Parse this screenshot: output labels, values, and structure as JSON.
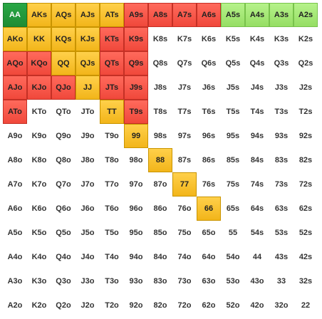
{
  "colors": {
    "green": "#1e8c34",
    "lightgreen": "#96de64",
    "orange": "#f2b51a",
    "red": "#f0483b",
    "white": "#ffffff"
  },
  "rows": [
    [
      {
        "label": "AA",
        "color": "green"
      },
      {
        "label": "AKs",
        "color": "orange"
      },
      {
        "label": "AQs",
        "color": "orange"
      },
      {
        "label": "AJs",
        "color": "orange"
      },
      {
        "label": "ATs",
        "color": "orange"
      },
      {
        "label": "A9s",
        "color": "red"
      },
      {
        "label": "A8s",
        "color": "red"
      },
      {
        "label": "A7s",
        "color": "red"
      },
      {
        "label": "A6s",
        "color": "red"
      },
      {
        "label": "A5s",
        "color": "lightgreen"
      },
      {
        "label": "A4s",
        "color": "lightgreen"
      },
      {
        "label": "A3s",
        "color": "lightgreen"
      },
      {
        "label": "A2s",
        "color": "lightgreen"
      }
    ],
    [
      {
        "label": "AKo",
        "color": "orange"
      },
      {
        "label": "KK",
        "color": "orange"
      },
      {
        "label": "KQs",
        "color": "orange"
      },
      {
        "label": "KJs",
        "color": "orange"
      },
      {
        "label": "KTs",
        "color": "red"
      },
      {
        "label": "K9s",
        "color": "red"
      },
      {
        "label": "K8s",
        "color": "white"
      },
      {
        "label": "K7s",
        "color": "white"
      },
      {
        "label": "K6s",
        "color": "white"
      },
      {
        "label": "K5s",
        "color": "white"
      },
      {
        "label": "K4s",
        "color": "white"
      },
      {
        "label": "K3s",
        "color": "white"
      },
      {
        "label": "K2s",
        "color": "white"
      }
    ],
    [
      {
        "label": "AQo",
        "color": "red"
      },
      {
        "label": "KQo",
        "color": "red"
      },
      {
        "label": "QQ",
        "color": "orange"
      },
      {
        "label": "QJs",
        "color": "orange"
      },
      {
        "label": "QTs",
        "color": "red"
      },
      {
        "label": "Q9s",
        "color": "red"
      },
      {
        "label": "Q8s",
        "color": "white"
      },
      {
        "label": "Q7s",
        "color": "white"
      },
      {
        "label": "Q6s",
        "color": "white"
      },
      {
        "label": "Q5s",
        "color": "white"
      },
      {
        "label": "Q4s",
        "color": "white"
      },
      {
        "label": "Q3s",
        "color": "white"
      },
      {
        "label": "Q2s",
        "color": "white"
      }
    ],
    [
      {
        "label": "AJo",
        "color": "red"
      },
      {
        "label": "KJo",
        "color": "red"
      },
      {
        "label": "QJo",
        "color": "red"
      },
      {
        "label": "JJ",
        "color": "orange"
      },
      {
        "label": "JTs",
        "color": "red"
      },
      {
        "label": "J9s",
        "color": "red"
      },
      {
        "label": "J8s",
        "color": "white"
      },
      {
        "label": "J7s",
        "color": "white"
      },
      {
        "label": "J6s",
        "color": "white"
      },
      {
        "label": "J5s",
        "color": "white"
      },
      {
        "label": "J4s",
        "color": "white"
      },
      {
        "label": "J3s",
        "color": "white"
      },
      {
        "label": "J2s",
        "color": "white"
      }
    ],
    [
      {
        "label": "ATo",
        "color": "red"
      },
      {
        "label": "KTo",
        "color": "white"
      },
      {
        "label": "QTo",
        "color": "white"
      },
      {
        "label": "JTo",
        "color": "white"
      },
      {
        "label": "TT",
        "color": "orange"
      },
      {
        "label": "T9s",
        "color": "red"
      },
      {
        "label": "T8s",
        "color": "white"
      },
      {
        "label": "T7s",
        "color": "white"
      },
      {
        "label": "T6s",
        "color": "white"
      },
      {
        "label": "T5s",
        "color": "white"
      },
      {
        "label": "T4s",
        "color": "white"
      },
      {
        "label": "T3s",
        "color": "white"
      },
      {
        "label": "T2s",
        "color": "white"
      }
    ],
    [
      {
        "label": "A9o",
        "color": "white"
      },
      {
        "label": "K9o",
        "color": "white"
      },
      {
        "label": "Q9o",
        "color": "white"
      },
      {
        "label": "J9o",
        "color": "white"
      },
      {
        "label": "T9o",
        "color": "white"
      },
      {
        "label": "99",
        "color": "orange"
      },
      {
        "label": "98s",
        "color": "white"
      },
      {
        "label": "97s",
        "color": "white"
      },
      {
        "label": "96s",
        "color": "white"
      },
      {
        "label": "95s",
        "color": "white"
      },
      {
        "label": "94s",
        "color": "white"
      },
      {
        "label": "93s",
        "color": "white"
      },
      {
        "label": "92s",
        "color": "white"
      }
    ],
    [
      {
        "label": "A8o",
        "color": "white"
      },
      {
        "label": "K8o",
        "color": "white"
      },
      {
        "label": "Q8o",
        "color": "white"
      },
      {
        "label": "J8o",
        "color": "white"
      },
      {
        "label": "T8o",
        "color": "white"
      },
      {
        "label": "98o",
        "color": "white"
      },
      {
        "label": "88",
        "color": "orange"
      },
      {
        "label": "87s",
        "color": "white"
      },
      {
        "label": "86s",
        "color": "white"
      },
      {
        "label": "85s",
        "color": "white"
      },
      {
        "label": "84s",
        "color": "white"
      },
      {
        "label": "83s",
        "color": "white"
      },
      {
        "label": "82s",
        "color": "white"
      }
    ],
    [
      {
        "label": "A7o",
        "color": "white"
      },
      {
        "label": "K7o",
        "color": "white"
      },
      {
        "label": "Q7o",
        "color": "white"
      },
      {
        "label": "J7o",
        "color": "white"
      },
      {
        "label": "T7o",
        "color": "white"
      },
      {
        "label": "97o",
        "color": "white"
      },
      {
        "label": "87o",
        "color": "white"
      },
      {
        "label": "77",
        "color": "orange"
      },
      {
        "label": "76s",
        "color": "white"
      },
      {
        "label": "75s",
        "color": "white"
      },
      {
        "label": "74s",
        "color": "white"
      },
      {
        "label": "73s",
        "color": "white"
      },
      {
        "label": "72s",
        "color": "white"
      }
    ],
    [
      {
        "label": "A6o",
        "color": "white"
      },
      {
        "label": "K6o",
        "color": "white"
      },
      {
        "label": "Q6o",
        "color": "white"
      },
      {
        "label": "J6o",
        "color": "white"
      },
      {
        "label": "T6o",
        "color": "white"
      },
      {
        "label": "96o",
        "color": "white"
      },
      {
        "label": "86o",
        "color": "white"
      },
      {
        "label": "76o",
        "color": "white"
      },
      {
        "label": "66",
        "color": "orange"
      },
      {
        "label": "65s",
        "color": "white"
      },
      {
        "label": "64s",
        "color": "white"
      },
      {
        "label": "63s",
        "color": "white"
      },
      {
        "label": "62s",
        "color": "white"
      }
    ],
    [
      {
        "label": "A5o",
        "color": "white"
      },
      {
        "label": "K5o",
        "color": "white"
      },
      {
        "label": "Q5o",
        "color": "white"
      },
      {
        "label": "J5o",
        "color": "white"
      },
      {
        "label": "T5o",
        "color": "white"
      },
      {
        "label": "95o",
        "color": "white"
      },
      {
        "label": "85o",
        "color": "white"
      },
      {
        "label": "75o",
        "color": "white"
      },
      {
        "label": "65o",
        "color": "white"
      },
      {
        "label": "55",
        "color": "white"
      },
      {
        "label": "54s",
        "color": "white"
      },
      {
        "label": "53s",
        "color": "white"
      },
      {
        "label": "52s",
        "color": "white"
      }
    ],
    [
      {
        "label": "A4o",
        "color": "white"
      },
      {
        "label": "K4o",
        "color": "white"
      },
      {
        "label": "Q4o",
        "color": "white"
      },
      {
        "label": "J4o",
        "color": "white"
      },
      {
        "label": "T4o",
        "color": "white"
      },
      {
        "label": "94o",
        "color": "white"
      },
      {
        "label": "84o",
        "color": "white"
      },
      {
        "label": "74o",
        "color": "white"
      },
      {
        "label": "64o",
        "color": "white"
      },
      {
        "label": "54o",
        "color": "white"
      },
      {
        "label": "44",
        "color": "white"
      },
      {
        "label": "43s",
        "color": "white"
      },
      {
        "label": "42s",
        "color": "white"
      }
    ],
    [
      {
        "label": "A3o",
        "color": "white"
      },
      {
        "label": "K3o",
        "color": "white"
      },
      {
        "label": "Q3o",
        "color": "white"
      },
      {
        "label": "J3o",
        "color": "white"
      },
      {
        "label": "T3o",
        "color": "white"
      },
      {
        "label": "93o",
        "color": "white"
      },
      {
        "label": "83o",
        "color": "white"
      },
      {
        "label": "73o",
        "color": "white"
      },
      {
        "label": "63o",
        "color": "white"
      },
      {
        "label": "53o",
        "color": "white"
      },
      {
        "label": "43o",
        "color": "white"
      },
      {
        "label": "33",
        "color": "white"
      },
      {
        "label": "32s",
        "color": "white"
      }
    ],
    [
      {
        "label": "A2o",
        "color": "white"
      },
      {
        "label": "K2o",
        "color": "white"
      },
      {
        "label": "Q2o",
        "color": "white"
      },
      {
        "label": "J2o",
        "color": "white"
      },
      {
        "label": "T2o",
        "color": "white"
      },
      {
        "label": "92o",
        "color": "white"
      },
      {
        "label": "82o",
        "color": "white"
      },
      {
        "label": "72o",
        "color": "white"
      },
      {
        "label": "62o",
        "color": "white"
      },
      {
        "label": "52o",
        "color": "white"
      },
      {
        "label": "42o",
        "color": "white"
      },
      {
        "label": "32o",
        "color": "white"
      },
      {
        "label": "22",
        "color": "white"
      }
    ]
  ]
}
